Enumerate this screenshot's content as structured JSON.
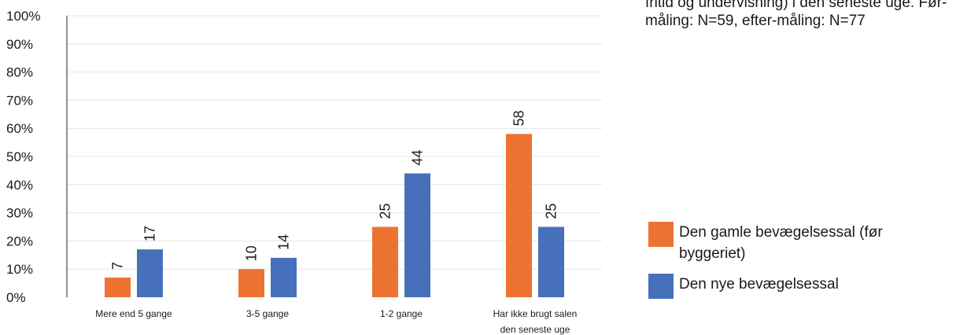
{
  "caption": "fritid og undervisning) i den seneste uge. Før-måling: N=59, efter-måling: N=77",
  "chart_data": {
    "type": "bar",
    "categories": [
      [
        "Mere end 5 gange"
      ],
      [
        "3-5 gange"
      ],
      [
        "1-2 gange"
      ],
      [
        "Har ikke brugt salen",
        "den seneste uge"
      ]
    ],
    "series": [
      {
        "name": "Den gamle bevægelsessal (før byggeriet)",
        "values": [
          7,
          10,
          25,
          58
        ],
        "color": "#ED7332"
      },
      {
        "name": "Den nye bevægelsessal",
        "values": [
          17,
          14,
          44,
          25
        ],
        "color": "#4671BA"
      }
    ],
    "yticks": [
      "0%",
      "10%",
      "20%",
      "30%",
      "40%",
      "50%",
      "60%",
      "70%",
      "80%",
      "90%",
      "100%"
    ],
    "ylim": [
      0,
      100
    ],
    "grid": true,
    "legend_position": "right"
  }
}
